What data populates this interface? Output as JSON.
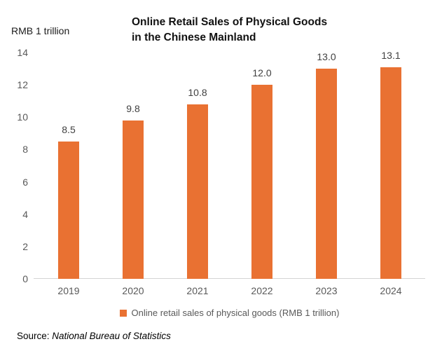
{
  "header": {
    "unit_label": "RMB 1 trillion",
    "title": "Online Retail Sales of Physical Goods\nin the Chinese Mainland"
  },
  "chart_data": {
    "type": "bar",
    "title": "Online Retail Sales of Physical Goods in the Chinese Mainland",
    "xlabel": "",
    "ylabel": "RMB 1 trillion",
    "categories": [
      "2019",
      "2020",
      "2021",
      "2022",
      "2023",
      "2024"
    ],
    "series": [
      {
        "name": "Online retail sales of physical goods (RMB 1 trillion)",
        "values": [
          8.5,
          9.8,
          10.8,
          12.0,
          13.0,
          13.1
        ]
      }
    ],
    "ylim": [
      0,
      14
    ],
    "y_ticks": [
      0,
      2,
      4,
      6,
      8,
      10,
      12,
      14
    ],
    "grid": false,
    "data_labels_shown": true,
    "legend_position": "bottom",
    "bar_color": "#E97132"
  },
  "legend": {
    "label": "Online retail sales of physical goods (RMB 1 trillion)",
    "swatch_color": "#E97132"
  },
  "footer": {
    "source_prefix": "Source: ",
    "source_name": "National Bureau of Statistics"
  }
}
